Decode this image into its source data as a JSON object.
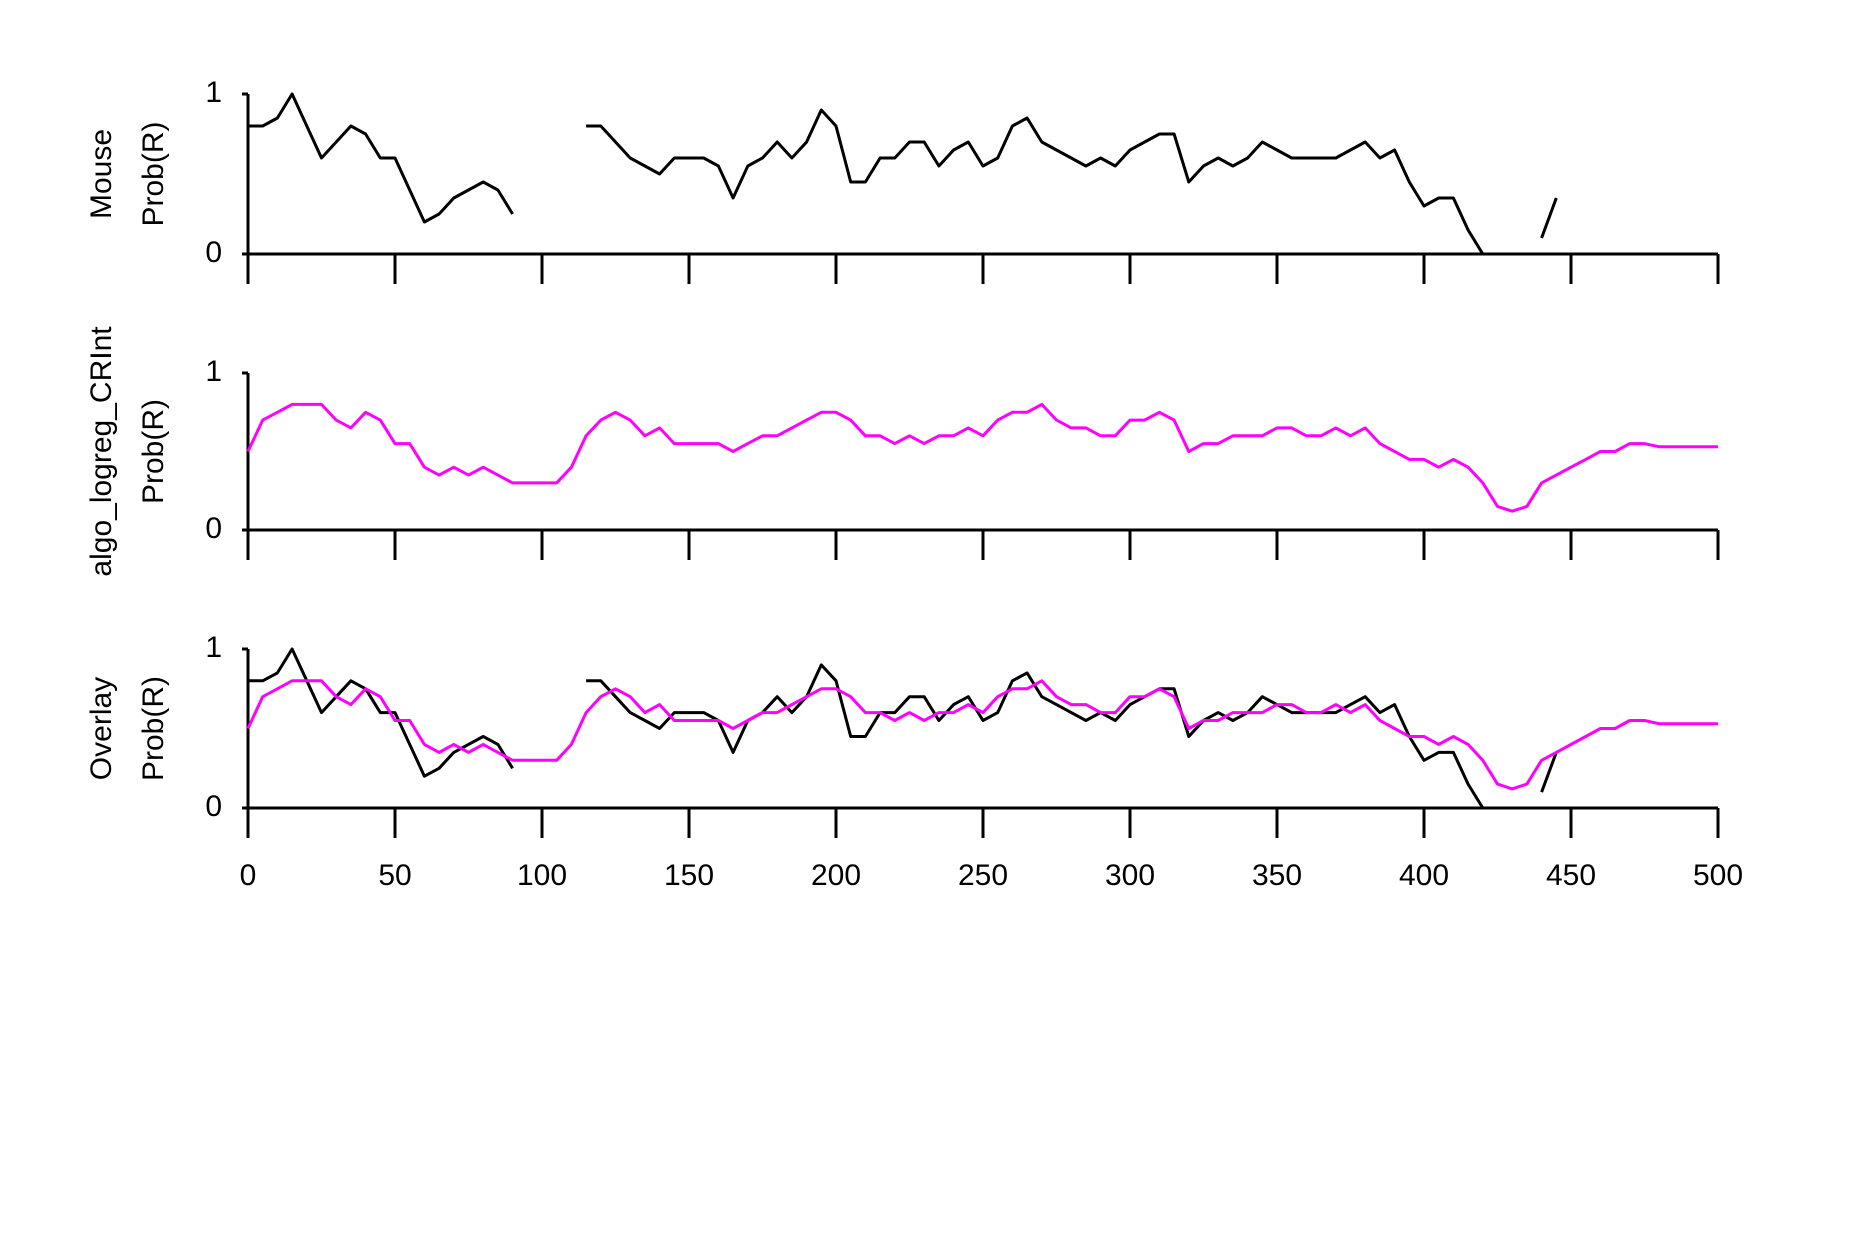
{
  "chart_data": [
    {
      "type": "line",
      "ylabel": [
        "Mouse",
        "Prob(R)"
      ],
      "x": [
        0,
        5,
        10,
        15,
        20,
        25,
        30,
        35,
        40,
        45,
        50,
        55,
        60,
        65,
        70,
        75,
        80,
        85,
        90,
        95,
        100,
        105,
        110,
        115,
        120,
        125,
        130,
        135,
        140,
        145,
        150,
        155,
        160,
        165,
        170,
        175,
        180,
        185,
        190,
        195,
        200,
        205,
        210,
        215,
        220,
        225,
        230,
        235,
        240,
        245,
        250,
        255,
        260,
        265,
        270,
        275,
        280,
        285,
        290,
        295,
        300,
        305,
        310,
        315,
        320,
        325,
        330,
        335,
        340,
        345,
        350,
        355,
        360,
        365,
        370,
        375,
        380,
        385,
        390,
        395,
        400,
        405,
        410,
        415,
        420,
        425,
        430,
        435,
        440,
        445,
        450,
        455,
        460,
        465,
        470,
        475,
        480,
        485,
        490,
        495,
        500
      ],
      "series": [
        {
          "color": "#000000",
          "values": [
            0.8,
            0.8,
            0.85,
            1,
            0.8,
            0.6,
            0.7,
            0.8,
            0.75,
            0.6,
            0.6,
            0.4,
            0.2,
            0.25,
            0.35,
            0.4,
            0.45,
            0.4,
            0.25,
            null,
            null,
            null,
            null,
            0.8,
            0.8,
            0.7,
            0.6,
            0.55,
            0.5,
            0.6,
            0.6,
            0.6,
            0.55,
            0.35,
            0.55,
            0.6,
            0.7,
            0.6,
            0.7,
            0.9,
            0.8,
            0.45,
            0.45,
            0.6,
            0.6,
            0.7,
            0.7,
            0.55,
            0.65,
            0.7,
            0.55,
            0.6,
            0.8,
            0.85,
            0.7,
            0.65,
            0.6,
            0.55,
            0.6,
            0.55,
            0.65,
            0.7,
            0.75,
            0.75,
            0.45,
            0.55,
            0.6,
            0.55,
            0.6,
            0.7,
            0.65,
            0.6,
            0.6,
            0.6,
            0.6,
            0.65,
            0.7,
            0.6,
            0.65,
            0.45,
            0.3,
            0.35,
            0.35,
            0.15,
            0,
            0,
            0,
            null,
            0.1,
            0.35,
            null,
            null,
            null,
            null,
            null,
            null,
            null,
            null,
            null,
            null,
            null
          ]
        }
      ],
      "xlim": [
        0,
        500
      ],
      "xticks": [
        0,
        50,
        100,
        150,
        200,
        250,
        300,
        350,
        400,
        450,
        500
      ],
      "ylim": [
        0,
        1
      ],
      "yticks": [
        0,
        1
      ]
    },
    {
      "type": "line",
      "ylabel": [
        "algo_logreg_CRInt",
        "Prob(R)"
      ],
      "x": [
        0,
        5,
        10,
        15,
        20,
        25,
        30,
        35,
        40,
        45,
        50,
        55,
        60,
        65,
        70,
        75,
        80,
        85,
        90,
        95,
        100,
        105,
        110,
        115,
        120,
        125,
        130,
        135,
        140,
        145,
        150,
        155,
        160,
        165,
        170,
        175,
        180,
        185,
        190,
        195,
        200,
        205,
        210,
        215,
        220,
        225,
        230,
        235,
        240,
        245,
        250,
        255,
        260,
        265,
        270,
        275,
        280,
        285,
        290,
        295,
        300,
        305,
        310,
        315,
        320,
        325,
        330,
        335,
        340,
        345,
        350,
        355,
        360,
        365,
        370,
        375,
        380,
        385,
        390,
        395,
        400,
        405,
        410,
        415,
        420,
        425,
        430,
        435,
        440,
        445,
        450,
        455,
        460,
        465,
        470,
        475,
        480,
        485,
        490,
        495,
        500
      ],
      "series": [
        {
          "color": "#ff00ff",
          "values": [
            0.5,
            0.7,
            0.75,
            0.8,
            0.8,
            0.8,
            0.7,
            0.65,
            0.75,
            0.7,
            0.55,
            0.55,
            0.4,
            0.35,
            0.4,
            0.35,
            0.4,
            0.35,
            0.3,
            0.3,
            0.3,
            0.3,
            0.4,
            0.6,
            0.7,
            0.75,
            0.7,
            0.6,
            0.65,
            0.55,
            0.55,
            0.55,
            0.55,
            0.5,
            0.55,
            0.6,
            0.6,
            0.65,
            0.7,
            0.75,
            0.75,
            0.7,
            0.6,
            0.6,
            0.55,
            0.6,
            0.55,
            0.6,
            0.6,
            0.65,
            0.6,
            0.7,
            0.75,
            0.75,
            0.8,
            0.7,
            0.65,
            0.65,
            0.6,
            0.6,
            0.7,
            0.7,
            0.75,
            0.7,
            0.5,
            0.55,
            0.55,
            0.6,
            0.6,
            0.6,
            0.65,
            0.65,
            0.6,
            0.6,
            0.65,
            0.6,
            0.65,
            0.55,
            0.5,
            0.45,
            0.45,
            0.4,
            0.45,
            0.4,
            0.3,
            0.15,
            0.12,
            0.15,
            0.3,
            0.35,
            0.4,
            0.45,
            0.5,
            0.5,
            0.55,
            0.55,
            0.53,
            0.53,
            0.53,
            0.53,
            0.53
          ]
        }
      ],
      "xlim": [
        0,
        500
      ],
      "xticks": [
        0,
        50,
        100,
        150,
        200,
        250,
        300,
        350,
        400,
        450,
        500
      ],
      "ylim": [
        0,
        1
      ],
      "yticks": [
        0,
        1
      ]
    },
    {
      "type": "line",
      "ylabel": [
        "Overlay",
        "Prob(R)"
      ],
      "x": [
        0,
        5,
        10,
        15,
        20,
        25,
        30,
        35,
        40,
        45,
        50,
        55,
        60,
        65,
        70,
        75,
        80,
        85,
        90,
        95,
        100,
        105,
        110,
        115,
        120,
        125,
        130,
        135,
        140,
        145,
        150,
        155,
        160,
        165,
        170,
        175,
        180,
        185,
        190,
        195,
        200,
        205,
        210,
        215,
        220,
        225,
        230,
        235,
        240,
        245,
        250,
        255,
        260,
        265,
        270,
        275,
        280,
        285,
        290,
        295,
        300,
        305,
        310,
        315,
        320,
        325,
        330,
        335,
        340,
        345,
        350,
        355,
        360,
        365,
        370,
        375,
        380,
        385,
        390,
        395,
        400,
        405,
        410,
        415,
        420,
        425,
        430,
        435,
        440,
        445,
        450,
        455,
        460,
        465,
        470,
        475,
        480,
        485,
        490,
        495,
        500
      ],
      "series": [
        {
          "color": "#000000",
          "values": [
            0.8,
            0.8,
            0.85,
            1,
            0.8,
            0.6,
            0.7,
            0.8,
            0.75,
            0.6,
            0.6,
            0.4,
            0.2,
            0.25,
            0.35,
            0.4,
            0.45,
            0.4,
            0.25,
            null,
            null,
            null,
            null,
            0.8,
            0.8,
            0.7,
            0.6,
            0.55,
            0.5,
            0.6,
            0.6,
            0.6,
            0.55,
            0.35,
            0.55,
            0.6,
            0.7,
            0.6,
            0.7,
            0.9,
            0.8,
            0.45,
            0.45,
            0.6,
            0.6,
            0.7,
            0.7,
            0.55,
            0.65,
            0.7,
            0.55,
            0.6,
            0.8,
            0.85,
            0.7,
            0.65,
            0.6,
            0.55,
            0.6,
            0.55,
            0.65,
            0.7,
            0.75,
            0.75,
            0.45,
            0.55,
            0.6,
            0.55,
            0.6,
            0.7,
            0.65,
            0.6,
            0.6,
            0.6,
            0.6,
            0.65,
            0.7,
            0.6,
            0.65,
            0.45,
            0.3,
            0.35,
            0.35,
            0.15,
            0,
            0,
            0,
            null,
            0.1,
            0.35,
            null,
            null,
            null,
            null,
            null,
            null,
            null,
            null,
            null,
            null,
            null
          ]
        },
        {
          "color": "#ff00ff",
          "values": [
            0.5,
            0.7,
            0.75,
            0.8,
            0.8,
            0.8,
            0.7,
            0.65,
            0.75,
            0.7,
            0.55,
            0.55,
            0.4,
            0.35,
            0.4,
            0.35,
            0.4,
            0.35,
            0.3,
            0.3,
            0.3,
            0.3,
            0.4,
            0.6,
            0.7,
            0.75,
            0.7,
            0.6,
            0.65,
            0.55,
            0.55,
            0.55,
            0.55,
            0.5,
            0.55,
            0.6,
            0.6,
            0.65,
            0.7,
            0.75,
            0.75,
            0.7,
            0.6,
            0.6,
            0.55,
            0.6,
            0.55,
            0.6,
            0.6,
            0.65,
            0.6,
            0.7,
            0.75,
            0.75,
            0.8,
            0.7,
            0.65,
            0.65,
            0.6,
            0.6,
            0.7,
            0.7,
            0.75,
            0.7,
            0.5,
            0.55,
            0.55,
            0.6,
            0.6,
            0.6,
            0.65,
            0.65,
            0.6,
            0.6,
            0.65,
            0.6,
            0.65,
            0.55,
            0.5,
            0.45,
            0.45,
            0.4,
            0.45,
            0.4,
            0.3,
            0.15,
            0.12,
            0.15,
            0.3,
            0.35,
            0.4,
            0.45,
            0.5,
            0.5,
            0.55,
            0.55,
            0.53,
            0.53,
            0.53,
            0.53,
            0.53
          ]
        }
      ],
      "xlim": [
        0,
        500
      ],
      "xticks": [
        0,
        50,
        100,
        150,
        200,
        250,
        300,
        350,
        400,
        450,
        500
      ],
      "ylim": [
        0,
        1
      ],
      "yticks": [
        0,
        1
      ]
    }
  ]
}
